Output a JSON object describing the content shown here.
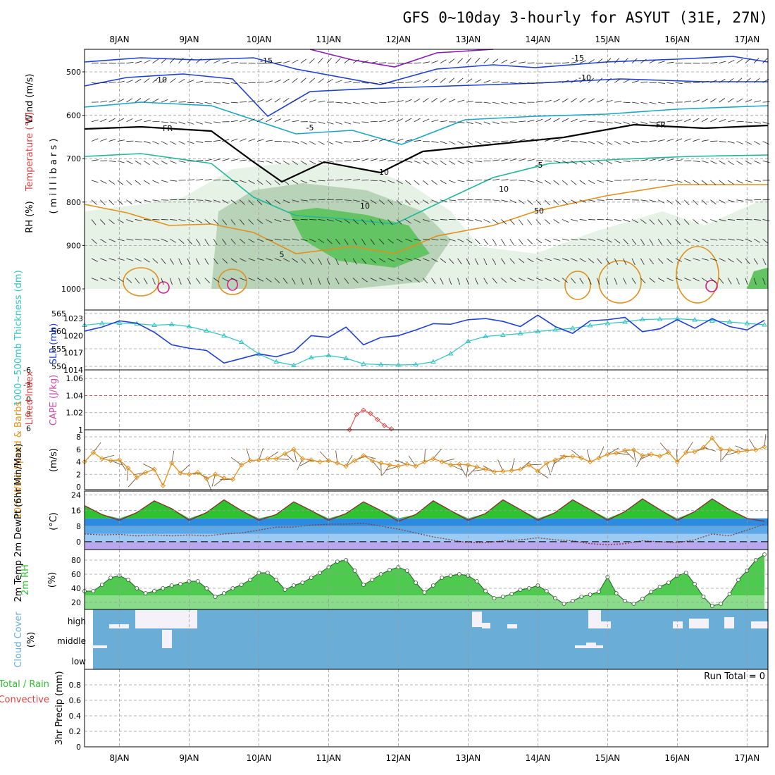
{
  "title": "GFS 0~10day 3-hourly for ASYUT (31E, 27N)",
  "date_labels": [
    "8JAN",
    "9JAN",
    "10JAN",
    "11JAN",
    "12JAN",
    "13JAN",
    "14JAN",
    "15JAN",
    "16JAN",
    "17JAN"
  ],
  "colors": {
    "temp_cold": "#1e3fd8",
    "temp_cool": "#1aa6c8",
    "temp_mild": "#20b89a",
    "freezing": "#000000",
    "temp_warm": "#e0901a",
    "temp_hot": "#d81a8a",
    "thickness": "#33c3c3",
    "slp": "#1e3fd8",
    "cape": "#cc4aa8",
    "lifted_index": "#e04040",
    "wind": "#e0901a",
    "temp_fill": "#2fc22f",
    "cloud": "#6aaed8",
    "rain": "#2fc22f",
    "convective": "#e04040"
  },
  "panels": {
    "upper_air": {
      "labels": {
        "wind": "Wind (m/s)",
        "temperature": "Temperature (°C)",
        "rh": "RH (%)",
        "millibars": "( m i l l i b a r s )"
      },
      "y_ticks": [
        "500",
        "600",
        "700",
        "800",
        "900",
        "1000"
      ],
      "contour_labels": [
        "-15",
        "-10",
        "-15",
        "-10",
        "-5",
        "-5",
        "FR",
        "FR",
        "10",
        "50",
        "10",
        "10",
        "5"
      ]
    },
    "pressure": {
      "label_thickness": "1000~500mb Thickness (dm)",
      "label_slp": "SLP (mb)",
      "left_ticks": [
        "565",
        "560",
        "555",
        "550"
      ],
      "right_ticks": [
        "1023",
        "1020",
        "1017",
        "1014"
      ]
    },
    "stability": {
      "label_li": "Lifted Index",
      "label_cape": "CAPE (J/kg)",
      "left_ticks": [
        "-6",
        "-3",
        "0",
        "3",
        "6"
      ],
      "right_ticks": [
        "1.06",
        "1.04",
        "1.02",
        "1"
      ]
    },
    "wind10m": {
      "label": "10m Wind Speed & Barbs",
      "unit": "(m/s)",
      "ticks": [
        "8",
        "6",
        "4",
        "2",
        "0"
      ]
    },
    "temp2m": {
      "label": "2m Temp 2m DewPt (6hr Min/Max)",
      "unit": "(°C)",
      "ticks": [
        "24",
        "16",
        "8",
        "0"
      ]
    },
    "rh2m": {
      "label": "2m RH",
      "unit": "(%)",
      "ticks": [
        "80",
        "60",
        "40",
        "20"
      ]
    },
    "cloud": {
      "label": "Cloud Cover",
      "unit": "(%)",
      "levels": [
        "high",
        "middle",
        "low"
      ]
    },
    "precip": {
      "label_total": "Total / Rain",
      "label_conv": "Convective",
      "label_axis": "3hr Precip (mm)",
      "ticks": [
        "0.8",
        "0.6",
        "0.4",
        "0.2",
        "0"
      ],
      "run_total": "Run Total = 0"
    }
  },
  "chart_data": [
    {
      "type": "line",
      "title": "1000~500mb Thickness and SLP",
      "x_unit": "day_of_month_jan",
      "series": [
        {
          "name": "1000~500mb Thickness (dm)",
          "axis": "left",
          "ylim": [
            549,
            566
          ],
          "x": [
            7.5,
            7.75,
            8.0,
            8.25,
            8.5,
            8.75,
            9.0,
            9.25,
            9.5,
            9.75,
            10.0,
            10.25,
            10.5,
            10.75,
            11.0,
            11.25,
            11.5,
            11.75,
            12.0,
            12.25,
            12.5,
            12.75,
            13.0,
            13.25,
            13.5,
            13.75,
            14.0,
            14.25,
            14.5,
            14.75,
            15.0,
            15.25,
            15.5,
            15.75,
            16.0,
            16.25,
            16.5,
            16.75,
            17.0,
            17.25
          ],
          "values": [
            561.7,
            562.2,
            562.3,
            562.1,
            561.7,
            561.9,
            561.3,
            560.1,
            558.7,
            556.9,
            553.5,
            551.3,
            550.3,
            552.5,
            553.1,
            552.3,
            550.7,
            550.5,
            550.4,
            550.5,
            551.3,
            553.6,
            557.1,
            558.5,
            558.9,
            559.3,
            559.9,
            560.4,
            560.8,
            561.6,
            562.2,
            562.6,
            563.3,
            563.4,
            563.5,
            563.2,
            562.9,
            562.6,
            562.2,
            561.8
          ]
        },
        {
          "name": "SLP (mb)",
          "axis": "right",
          "ylim": [
            1014,
            1024.5
          ],
          "x": [
            7.5,
            7.75,
            8.0,
            8.25,
            8.5,
            8.75,
            9.0,
            9.25,
            9.5,
            9.75,
            10.0,
            10.25,
            10.5,
            10.75,
            11.0,
            11.25,
            11.5,
            11.75,
            12.0,
            12.25,
            12.5,
            12.75,
            13.0,
            13.25,
            13.5,
            13.75,
            14.0,
            14.25,
            14.5,
            14.75,
            15.0,
            15.25,
            15.5,
            15.75,
            16.0,
            16.25,
            16.5,
            16.75,
            17.0,
            17.25
          ],
          "values": [
            1020.8,
            1021.5,
            1022.6,
            1022.2,
            1020.6,
            1018.4,
            1017.8,
            1017.4,
            1015.2,
            1016.0,
            1016.8,
            1016.3,
            1017.2,
            1020.0,
            1019.7,
            1021.5,
            1018.4,
            1019.7,
            1020.0,
            1021.0,
            1022.1,
            1022.0,
            1022.8,
            1023.0,
            1022.5,
            1021.6,
            1023.6,
            1021.6,
            1020.4,
            1022.6,
            1022.8,
            1023.2,
            1020.7,
            1021.2,
            1022.8,
            1021.3,
            1023.0,
            1021.6,
            1021.0,
            1022.7
          ]
        }
      ],
      "xlabel": "",
      "ylabel": "1000~500mb Thickness (dm) / SLP (mb)"
    },
    {
      "type": "line",
      "title": "CAPE",
      "series": [
        {
          "name": "CAPE (J/kg)",
          "x": [
            11.3,
            11.4,
            11.5,
            11.6,
            11.7,
            11.8,
            11.9
          ],
          "values": [
            1.0,
            1.018,
            1.023,
            1.019,
            1.012,
            1.005,
            1.001
          ]
        }
      ],
      "ylim": [
        1.0,
        1.07
      ],
      "lifted_index_zero": 1.04,
      "ylabel": "CAPE (J/kg)"
    },
    {
      "type": "line",
      "title": "10m Wind Speed",
      "series": [
        {
          "name": "10m Wind Speed (m/s)",
          "x": [
            7.5,
            7.625,
            7.75,
            7.875,
            8.0,
            8.125,
            8.25,
            8.375,
            8.5,
            8.625,
            8.75,
            8.875,
            9.0,
            9.125,
            9.25,
            9.375,
            9.5,
            9.625,
            9.75,
            9.875,
            10.0,
            10.125,
            10.25,
            10.375,
            10.5,
            10.625,
            10.75,
            10.875,
            11.0,
            11.125,
            11.25,
            11.375,
            11.5,
            11.625,
            11.75,
            11.875,
            12.0,
            12.125,
            12.25,
            12.375,
            12.5,
            12.625,
            12.75,
            12.875,
            13.0,
            13.125,
            13.25,
            13.375,
            13.5,
            13.625,
            13.75,
            13.875,
            14.0,
            14.125,
            14.25,
            14.375,
            14.5,
            14.625,
            14.75,
            14.875,
            15.0,
            15.125,
            15.25,
            15.375,
            15.5,
            15.625,
            15.75,
            15.875,
            16.0,
            16.125,
            16.25,
            16.375,
            16.5,
            16.625,
            16.75,
            16.875,
            17.0,
            17.125,
            17.25
          ],
          "values": [
            4.0,
            5.5,
            4.5,
            4.2,
            4.3,
            3.0,
            1.5,
            2.3,
            2.8,
            0.2,
            3.8,
            2.2,
            2.0,
            2.3,
            1.3,
            2.0,
            1.4,
            1.2,
            3.5,
            4.2,
            4.3,
            4.5,
            4.5,
            5.3,
            6.0,
            4.5,
            4.3,
            4.0,
            4.2,
            3.8,
            3.3,
            4.2,
            5.0,
            4.2,
            3.8,
            3.5,
            3.3,
            3.6,
            3.3,
            4.0,
            4.5,
            4.0,
            3.5,
            3.6,
            3.5,
            3.2,
            2.8,
            2.4,
            2.5,
            2.6,
            2.8,
            3.5,
            2.5,
            3.8,
            4.3,
            4.8,
            4.9,
            4.6,
            4.0,
            4.6,
            5.2,
            5.4,
            5.8,
            5.9,
            5.0,
            5.2,
            4.9,
            5.5,
            4.0,
            5.5,
            5.6,
            6.3,
            7.8,
            6.0,
            5.9,
            5.6,
            5.8,
            5.9,
            6.4
          ]
        }
      ],
      "ylim": [
        0,
        8
      ],
      "ylabel": "(m/s)"
    },
    {
      "type": "area",
      "title": "2m Temp and DewPt",
      "series": [
        {
          "name": "2m Temp (°C)",
          "x": [
            7.5,
            7.75,
            8.0,
            8.25,
            8.5,
            8.75,
            9.0,
            9.25,
            9.5,
            9.75,
            10.0,
            10.25,
            10.5,
            10.75,
            11.0,
            11.25,
            11.5,
            11.75,
            12.0,
            12.25,
            12.5,
            12.75,
            13.0,
            13.25,
            13.5,
            13.75,
            14.0,
            14.25,
            14.5,
            14.75,
            15.0,
            15.25,
            15.5,
            15.75,
            16.0,
            16.25,
            16.5,
            16.75,
            17.0,
            17.25
          ],
          "values": [
            18.5,
            14.0,
            11.0,
            15.0,
            21.0,
            17.0,
            11.0,
            15.0,
            21.5,
            16.0,
            11.0,
            14.0,
            20.5,
            16.0,
            11.0,
            14.5,
            20.5,
            16.0,
            10.5,
            14.0,
            21.0,
            16.0,
            11.0,
            14.5,
            21.5,
            16.5,
            11.0,
            15.0,
            21.5,
            16.5,
            11.0,
            15.5,
            22.0,
            16.5,
            11.0,
            15.5,
            22.0,
            16.5,
            12.0,
            10.5
          ]
        },
        {
          "name": "2m DewPt (°C)",
          "x": [
            7.5,
            7.75,
            8.0,
            8.25,
            8.5,
            8.75,
            9.0,
            9.25,
            9.5,
            9.75,
            10.0,
            10.25,
            10.5,
            10.75,
            11.0,
            11.25,
            11.5,
            11.75,
            12.0,
            12.25,
            12.5,
            12.75,
            13.0,
            13.25,
            13.5,
            13.75,
            14.0,
            14.25,
            14.5,
            14.75,
            15.0,
            15.25,
            15.5,
            15.75,
            16.0,
            16.25,
            16.5,
            16.75,
            17.0,
            17.25
          ],
          "values": [
            4.0,
            3.5,
            3.8,
            3.0,
            3.5,
            3.0,
            3.5,
            3.0,
            4.0,
            4.5,
            6.0,
            7.5,
            7.5,
            8.5,
            9.0,
            9.0,
            9.5,
            8.0,
            6.5,
            4.5,
            2.5,
            1.0,
            -0.5,
            -0.5,
            0.5,
            1.0,
            2.0,
            1.0,
            0.5,
            -1.0,
            -1.5,
            -1.0,
            0.5,
            0.0,
            -0.5,
            1.0,
            4.0,
            3.0,
            6.0,
            9.0
          ]
        }
      ],
      "ylim": [
        -4,
        26
      ],
      "ylabel": "(°C)"
    },
    {
      "type": "area",
      "title": "2m RH",
      "series": [
        {
          "name": "2m RH (%)",
          "x": [
            7.5,
            7.625,
            7.75,
            7.875,
            8.0,
            8.125,
            8.25,
            8.375,
            8.5,
            8.625,
            8.75,
            8.875,
            9.0,
            9.125,
            9.25,
            9.375,
            9.5,
            9.625,
            9.75,
            9.875,
            10.0,
            10.125,
            10.25,
            10.375,
            10.5,
            10.625,
            10.75,
            10.875,
            11.0,
            11.125,
            11.25,
            11.375,
            11.5,
            11.625,
            11.75,
            11.875,
            12.0,
            12.125,
            12.25,
            12.375,
            12.5,
            12.625,
            12.75,
            12.875,
            13.0,
            13.125,
            13.25,
            13.375,
            13.5,
            13.625,
            13.75,
            13.875,
            14.0,
            14.125,
            14.25,
            14.375,
            14.5,
            14.625,
            14.75,
            14.875,
            15.0,
            15.125,
            15.25,
            15.375,
            15.5,
            15.625,
            15.75,
            15.875,
            16.0,
            16.125,
            16.25,
            16.375,
            16.5,
            16.625,
            16.75,
            16.875,
            17.0,
            17.125,
            17.25
          ],
          "values": [
            36,
            36,
            45,
            55,
            58,
            52,
            40,
            33,
            36,
            40,
            44,
            46,
            50,
            50,
            40,
            28,
            33,
            40,
            45,
            52,
            62,
            62,
            52,
            38,
            44,
            48,
            55,
            62,
            70,
            78,
            80,
            65,
            45,
            52,
            60,
            66,
            70,
            65,
            48,
            34,
            44,
            55,
            58,
            60,
            58,
            50,
            36,
            26,
            28,
            32,
            38,
            40,
            44,
            36,
            26,
            18,
            22,
            28,
            31,
            35,
            56,
            33,
            22,
            18,
            25,
            35,
            42,
            48,
            58,
            62,
            46,
            28,
            15,
            18,
            32,
            52,
            65,
            80,
            88
          ]
        }
      ],
      "ylim": [
        10,
        95
      ],
      "ylabel": "(%)"
    },
    {
      "type": "bar",
      "title": "3hr Precip",
      "series": [
        {
          "name": "3hr Precip (mm)",
          "values": []
        }
      ],
      "ylim": [
        0,
        1.0
      ],
      "ylabel": "3hr Precip (mm)",
      "run_total": 0
    }
  ]
}
